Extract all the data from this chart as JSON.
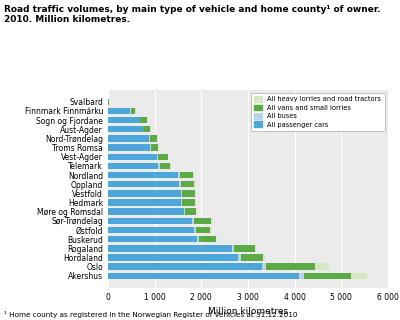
{
  "title": "Road traffic volumes, by main type of vehicle and home county¹ of owner.\n2010. Million kilometres.",
  "footnote": "¹ Home county as registered in the Norwegian Register of Vehicles at 31.12.2010",
  "xlabel": "Million kilometres",
  "categories": [
    "Svalbard",
    "Finnmark Finnmárku",
    "Sogn og Fjordane",
    "Aust-Agder",
    "Nord-Trøndelag",
    "Troms Romsa",
    "Vest-Agder",
    "Telemark",
    "Nordland",
    "Oppland",
    "Vestfold",
    "Hedmark",
    "Møre og Romsdal",
    "Sør-Trøndelag",
    "Østfold",
    "Buskerud",
    "Rogaland",
    "Hordaland",
    "Oslo",
    "Akershus"
  ],
  "passenger_cars": [
    10,
    480,
    680,
    740,
    870,
    900,
    1050,
    1080,
    1500,
    1520,
    1560,
    1560,
    1620,
    1800,
    1850,
    1900,
    2650,
    2780,
    3300,
    4100
  ],
  "buses": [
    0,
    10,
    15,
    15,
    20,
    20,
    25,
    25,
    40,
    35,
    30,
    30,
    40,
    50,
    35,
    45,
    60,
    70,
    90,
    100
  ],
  "vans_small_lorries": [
    5,
    95,
    140,
    155,
    170,
    160,
    200,
    215,
    280,
    290,
    280,
    280,
    220,
    360,
    310,
    380,
    430,
    470,
    1050,
    1000
  ],
  "heavy_lorries": [
    2,
    10,
    15,
    15,
    20,
    20,
    20,
    20,
    30,
    30,
    25,
    25,
    30,
    30,
    30,
    35,
    40,
    45,
    300,
    350
  ],
  "color_passenger": "#4da6d9",
  "color_buses": "#b8d4e8",
  "color_vans": "#5baa46",
  "color_heavy": "#d4e8c2",
  "xlim": [
    0,
    6000
  ],
  "xticks": [
    0,
    1000,
    2000,
    3000,
    4000,
    5000,
    6000
  ],
  "xtick_labels": [
    "0",
    "1 000",
    "2 000",
    "3 000",
    "4 000",
    "5 000",
    "6 000"
  ],
  "legend_labels": [
    "All heavy lorries and road tractors",
    "All vans and small lorries",
    "All buses",
    "All passenger cars"
  ],
  "background_color": "#ebebeb",
  "bar_height": 0.7,
  "title_fontsize": 6.5,
  "tick_fontsize": 5.5,
  "xlabel_fontsize": 6.5,
  "footnote_fontsize": 5.2
}
